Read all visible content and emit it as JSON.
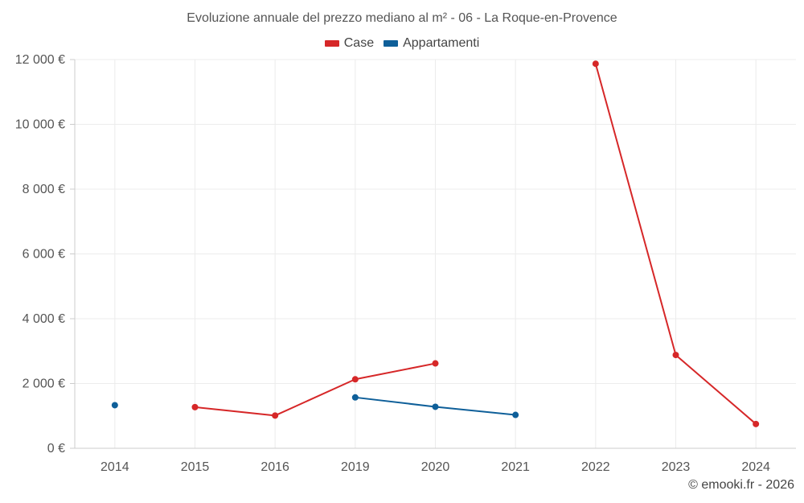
{
  "chart_data": {
    "type": "line",
    "title": "Evoluzione annuale del prezzo mediano al m² - 06 - La Roque-en-Provence",
    "categories": [
      "2014",
      "2015",
      "2016",
      "2019",
      "2020",
      "2021",
      "2022",
      "2023",
      "2024"
    ],
    "y_tick_labels": [
      "0 €",
      "2 000 €",
      "4 000 €",
      "6 000 €",
      "8 000 €",
      "10 000 €",
      "12 000 €"
    ],
    "ylim": [
      0,
      12000
    ],
    "xlabel": "",
    "ylabel": "",
    "grid": true,
    "legend_position": "top-center",
    "series": [
      {
        "name": "Case",
        "color": "#d62728",
        "values": [
          null,
          1270,
          1010,
          2130,
          2620,
          null,
          11870,
          2880,
          750
        ]
      },
      {
        "name": "Appartamenti",
        "color": "#0e5f99",
        "values": [
          1330,
          null,
          null,
          1570,
          1280,
          1030,
          null,
          null,
          null
        ]
      }
    ]
  },
  "footer": "© emooki.fr - 2026"
}
